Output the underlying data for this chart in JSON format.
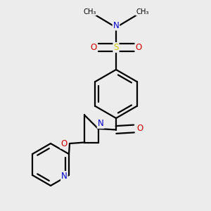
{
  "bg_color": "#ececec",
  "bond_color": "#000000",
  "N_color": "#0000cc",
  "O_color": "#cc0000",
  "S_color": "#cccc00",
  "line_width": 1.6,
  "dbo": 0.012,
  "figsize": [
    3.0,
    3.0
  ],
  "dpi": 100,
  "xlim": [
    0,
    1
  ],
  "ylim": [
    0,
    1
  ],
  "font_size": 8.5
}
